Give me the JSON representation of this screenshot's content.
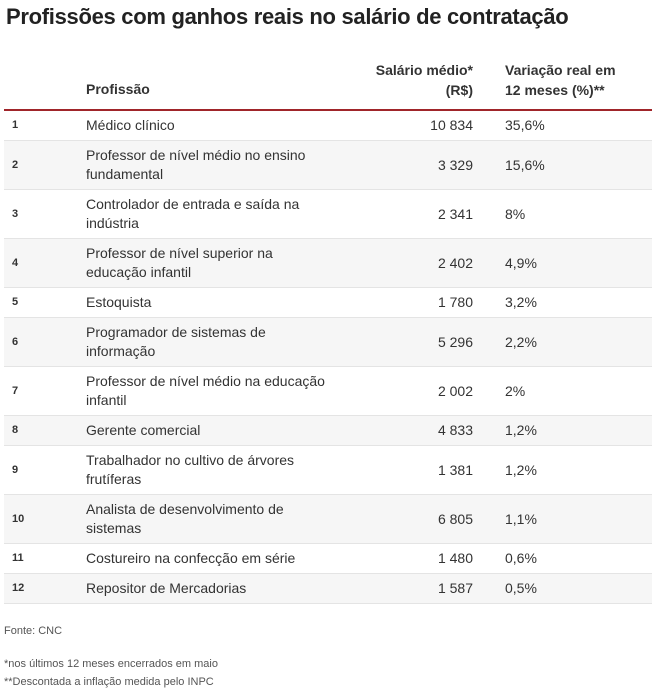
{
  "title": "Profissões com ganhos reais no salário de contratação",
  "columns": {
    "profissao": "Profissão",
    "salario_line1": "Salário médio*",
    "salario_line2": "(R$)",
    "variacao_line1": "Variação real em",
    "variacao_line2": "12 meses (%)**"
  },
  "rows": [
    {
      "rank": "1",
      "profissao": "Médico clínico",
      "salario": "10 834",
      "variacao": "35,6%"
    },
    {
      "rank": "2",
      "profissao": "Professor de nível médio no ensino fundamental",
      "salario": "3 329",
      "variacao": "15,6%"
    },
    {
      "rank": "3",
      "profissao": "Controlador de entrada e saída na indústria",
      "salario": "2 341",
      "variacao": "8%"
    },
    {
      "rank": "4",
      "profissao": "Professor de nível superior na educação infantil",
      "salario": "2 402",
      "variacao": "4,9%"
    },
    {
      "rank": "5",
      "profissao": "Estoquista",
      "salario": "1 780",
      "variacao": "3,2%"
    },
    {
      "rank": "6",
      "profissao": "Programador de sistemas de informação",
      "salario": "5 296",
      "variacao": "2,2%"
    },
    {
      "rank": "7",
      "profissao": "Professor de nível médio na educação infantil",
      "salario": "2 002",
      "variacao": "2%"
    },
    {
      "rank": "8",
      "profissao": "Gerente comercial",
      "salario": "4 833",
      "variacao": "1,2%"
    },
    {
      "rank": "9",
      "profissao": "Trabalhador no cultivo de árvores frutíferas",
      "salario": "1 381",
      "variacao": "1,2%"
    },
    {
      "rank": "10",
      "profissao": "Analista de desenvolvimento de sistemas",
      "salario": "6 805",
      "variacao": "1,1%"
    },
    {
      "rank": "11",
      "profissao": "Costureiro na confecção em série",
      "salario": "1 480",
      "variacao": "0,6%"
    },
    {
      "rank": "12",
      "profissao": "Repositor de Mercadorias",
      "salario": "1 587",
      "variacao": "0,5%"
    }
  ],
  "footer": {
    "source": "Fonte: CNC",
    "note1": "*nos últimos 12 meses encerrados em maio",
    "note2": "**Descontada a inflação medida pelo INPC"
  },
  "colors": {
    "header_rule": "#a0252a",
    "row_shade": "#f6f6f6"
  }
}
